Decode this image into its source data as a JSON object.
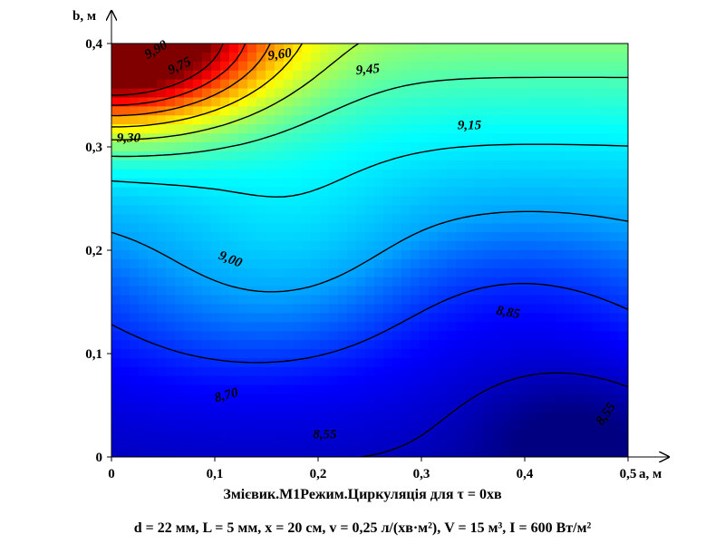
{
  "chart_data": {
    "type": "heatmap",
    "subtype": "contour",
    "xlabel": "a, м",
    "ylabel": "b, м",
    "xlim": [
      0,
      0.5
    ],
    "ylim": [
      0,
      0.4
    ],
    "x_ticks": [
      "0",
      "0,1",
      "0,2",
      "0,3",
      "0,4",
      "0,5"
    ],
    "y_ticks": [
      "0",
      "0,1",
      "0,2",
      "0,3",
      "0,4"
    ],
    "colormap": [
      "#000080",
      "#0000ff",
      "#00a0ff",
      "#00ffff",
      "#80ff80",
      "#ffff00",
      "#ff8000",
      "#ff0000",
      "#800000"
    ],
    "value_range": [
      8.45,
      10.0
    ],
    "contour_labels": [
      {
        "text": "9,90",
        "value": 9.9,
        "x": 0.035,
        "y": 0.385,
        "angle": -30
      },
      {
        "text": "9,75",
        "value": 9.75,
        "x": 0.057,
        "y": 0.37,
        "angle": -25
      },
      {
        "text": "9,60",
        "value": 9.6,
        "x": 0.152,
        "y": 0.384,
        "angle": -8
      },
      {
        "text": "9,45",
        "value": 9.45,
        "x": 0.237,
        "y": 0.37,
        "angle": -5
      },
      {
        "text": "9,30",
        "value": 9.3,
        "x": 0.005,
        "y": 0.305,
        "angle": 0
      },
      {
        "text": "9,15",
        "value": 9.15,
        "x": 0.335,
        "y": 0.317,
        "angle": 0
      },
      {
        "text": "9,00",
        "value": 9.0,
        "x": 0.103,
        "y": 0.192,
        "angle": 22
      },
      {
        "text": "8,85",
        "value": 8.85,
        "x": 0.372,
        "y": 0.138,
        "angle": 10
      },
      {
        "text": "8,70",
        "value": 8.7,
        "x": 0.101,
        "y": 0.053,
        "angle": -15
      },
      {
        "text": "8,55",
        "value": 8.55,
        "x": 0.195,
        "y": 0.018,
        "angle": 0
      },
      {
        "text": "8,55",
        "value": 8.55,
        "x": 0.475,
        "y": 0.03,
        "angle": -55
      }
    ]
  },
  "caption": {
    "line1": "Змієвик.М1Режим.Циркуляція для τ = 0хв",
    "line2": "d = 22 мм, L = 5 мм, x = 20 см, v = 0,25 л/(хв·м²), V = 15 м³, I = 600 Вт/м²"
  }
}
